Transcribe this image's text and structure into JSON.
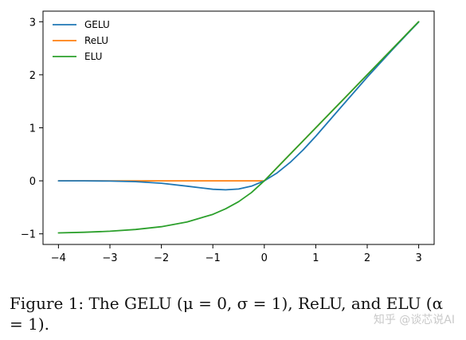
{
  "chart_data": {
    "type": "line",
    "title": "",
    "xlabel": "",
    "ylabel": "",
    "xlim": [
      -4.3,
      3.3
    ],
    "ylim": [
      -1.2,
      3.2
    ],
    "xticks": [
      -4,
      -3,
      -2,
      -1,
      0,
      1,
      2,
      3
    ],
    "xtick_labels": [
      "−4",
      "−3",
      "−2",
      "−1",
      "0",
      "1",
      "2",
      "3"
    ],
    "yticks": [
      -1,
      0,
      1,
      2,
      3
    ],
    "ytick_labels": [
      "−1",
      "0",
      "1",
      "2",
      "3"
    ],
    "grid": false,
    "legend_position": "top-left",
    "x": [
      -4,
      -3.5,
      -3,
      -2.5,
      -2,
      -1.5,
      -1,
      -0.75,
      -0.5,
      -0.25,
      0,
      0.25,
      0.5,
      0.75,
      1,
      1.5,
      2,
      2.5,
      3
    ],
    "series": [
      {
        "name": "GELU",
        "color": "#1f77b4",
        "values": [
          -0.0001,
          -0.0008,
          -0.004,
          -0.0155,
          -0.0455,
          -0.1002,
          -0.1587,
          -0.17,
          -0.1543,
          -0.1003,
          0,
          0.1497,
          0.3457,
          0.58,
          0.8413,
          1.3998,
          1.9545,
          2.4845,
          2.996
        ]
      },
      {
        "name": "ReLU",
        "color": "#ff7f0e",
        "values": [
          0,
          0,
          0,
          0,
          0,
          0,
          0,
          0,
          0,
          0,
          0,
          0.25,
          0.5,
          0.75,
          1,
          1.5,
          2,
          2.5,
          3
        ]
      },
      {
        "name": "ELU",
        "color": "#2ca02c",
        "values": [
          -0.9817,
          -0.9698,
          -0.9502,
          -0.9179,
          -0.8647,
          -0.7769,
          -0.6321,
          -0.5276,
          -0.3935,
          -0.2212,
          0,
          0.25,
          0.5,
          0.75,
          1,
          1.5,
          2,
          2.5,
          3
        ]
      }
    ]
  },
  "caption": "Figure 1: The GELU (μ = 0, σ = 1), ReLU, and ELU (α = 1).",
  "watermark": "知乎 @谈芯说AI"
}
